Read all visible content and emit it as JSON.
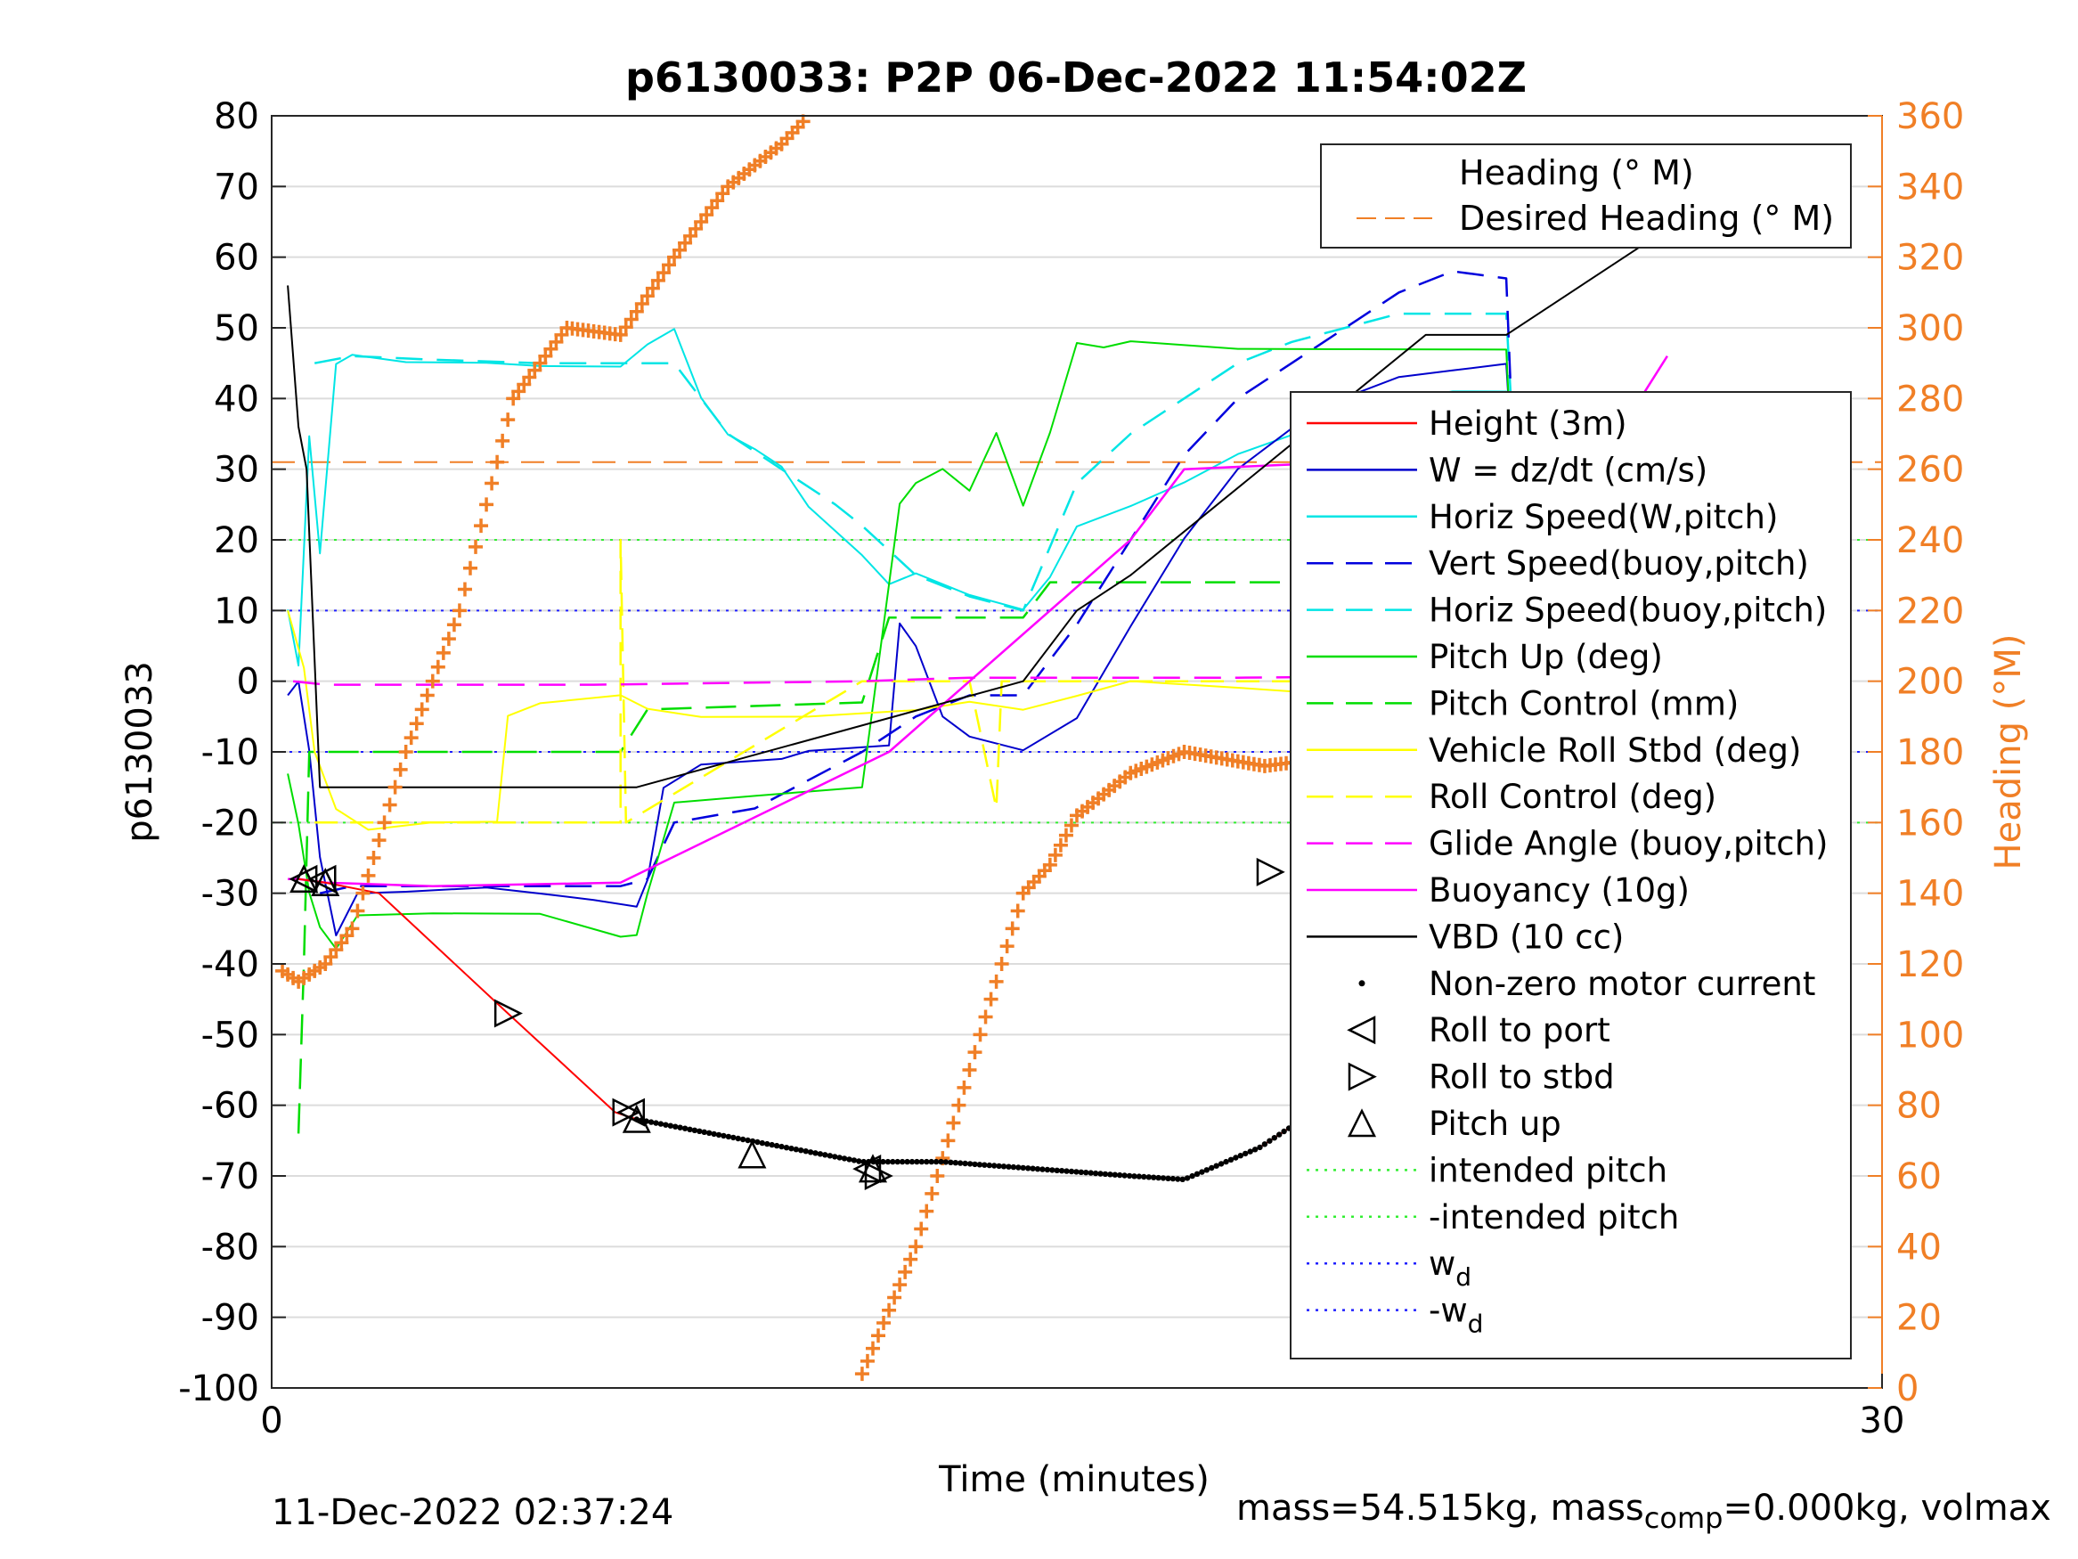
{
  "footer": {
    "timestamp": "11-Dec-2022 02:37:24",
    "mass_text": "mass=54.515kg, mass",
    "mass_sub": "comp",
    "mass_rest": "=0.000kg, volmax"
  },
  "chart_data": {
    "type": "line",
    "title": "p6130033: P2P 06-Dec-2022 11:54:02Z",
    "xlabel": "Time (minutes)",
    "ylabel": "p6130033",
    "y2label": "Heading (°M)",
    "xlim": [
      0,
      30
    ],
    "ylim": [
      -100,
      80
    ],
    "y2lim": [
      0,
      360
    ],
    "x_ticks": [
      "0",
      "30"
    ],
    "y_ticks": [
      "80",
      "70",
      "60",
      "50",
      "40",
      "30",
      "20",
      "10",
      "0",
      "-10",
      "-20",
      "-30",
      "-40",
      "-50",
      "-60",
      "-70",
      "-80",
      "-90",
      "-100"
    ],
    "y2_ticks": [
      "360",
      "340",
      "320",
      "300",
      "280",
      "260",
      "240",
      "220",
      "200",
      "180",
      "160",
      "140",
      "120",
      "100",
      "80",
      "60",
      "40",
      "20",
      "0"
    ],
    "grid": true,
    "colors": {
      "heading": "#f07f26",
      "height": "#ff0000",
      "w": "#0000cc",
      "horiz_w": "#00e5e5",
      "vert_buoy": "#0000dd",
      "horiz_buoy": "#00e5e5",
      "pitch_up": "#00dd00",
      "pitch_control": "#00dd00",
      "roll": "#ffff00",
      "roll_control": "#ffff00",
      "glide": "#ff00ff",
      "buoyancy": "#ff00ff",
      "vbd": "#000000"
    },
    "legend_heading": [
      "Heading (° M)",
      "Desired Heading (° M)"
    ],
    "legend_main": [
      "Height (3m)",
      "W = dz/dt (cm/s)",
      "Horiz Speed(W,pitch)",
      "Vert Speed(buoy,pitch)",
      "Horiz Speed(buoy,pitch)",
      "Pitch Up (deg)",
      "Pitch Control (mm)",
      "Vehicle Roll Stbd (deg)",
      "Roll Control (deg)",
      "Glide Angle (buoy,pitch)",
      "Buoyancy (10g)",
      "VBD (10 cc)",
      "Non-zero motor current",
      "Roll to port",
      "Roll to stbd",
      "Pitch up",
      "intended pitch",
      "-intended pitch",
      "w",
      "-w"
    ],
    "legend_wd_sub": "d",
    "legend_placement": "right",
    "series": [
      {
        "name": "VBD (10 cc)",
        "x": [
          0.3,
          0.5,
          0.65,
          0.9,
          6.8,
          14.0,
          15.0,
          16.0,
          21.5,
          23.0,
          26.0
        ],
        "y": [
          56,
          36,
          30,
          -15,
          -15,
          0,
          10,
          15,
          49,
          49,
          64
        ]
      },
      {
        "name": "Buoyancy (10g)",
        "x": [
          0.3,
          0.5,
          1.0,
          3.0,
          6.5,
          11.5,
          16.0,
          17.0,
          23.0,
          24.0,
          25.5,
          26.0
        ],
        "y": [
          -28,
          -28,
          -28.5,
          -29,
          -28.5,
          -10,
          20,
          30,
          32,
          32,
          40,
          46
        ]
      },
      {
        "name": "Height (3m)",
        "x": [
          0.5,
          1.0,
          2.0,
          4.4,
          6.4,
          6.8,
          11.0,
          12.5,
          16.0,
          17.0,
          18.4,
          19.8,
          21.3,
          23.0,
          25.0
        ],
        "y": [
          -28,
          -28.5,
          -30,
          -47,
          -61,
          -62,
          -68,
          -68,
          -70,
          -70.5,
          -66,
          -59,
          -48,
          -27,
          -27
        ]
      },
      {
        "name": "Heading (° M)",
        "axis": "right",
        "x": [
          0.2,
          0.5,
          1.0,
          1.5,
          2.5,
          3.5,
          4.5,
          5.5,
          6.5,
          7.5,
          8.5,
          9.5,
          10.0,
          11.0,
          12.0,
          13.0,
          14.0,
          14.5,
          15.0,
          16.0,
          17.0,
          18.5,
          19.5,
          20.5,
          21.5,
          22.5,
          23.0,
          23.4,
          23.8,
          24.5,
          25.0,
          26.0
        ],
        "y": [
          118,
          115,
          120,
          130,
          180,
          220,
          280,
          300,
          298,
          320,
          340,
          352,
          360,
          4,
          40,
          90,
          140,
          148,
          162,
          174,
          180,
          176,
          178,
          186,
          194,
          190,
          180,
          228,
          262,
          260,
          262,
          262
        ]
      }
    ],
    "hlines": [
      {
        "name": "Desired Heading (° M)",
        "axis": "right",
        "value": 262
      },
      {
        "name": "intended pitch",
        "value": 20
      },
      {
        "name": "-intended pitch",
        "value": -20
      },
      {
        "name": "w_d",
        "value": 10
      },
      {
        "name": "-w_d",
        "value": -10
      }
    ]
  }
}
